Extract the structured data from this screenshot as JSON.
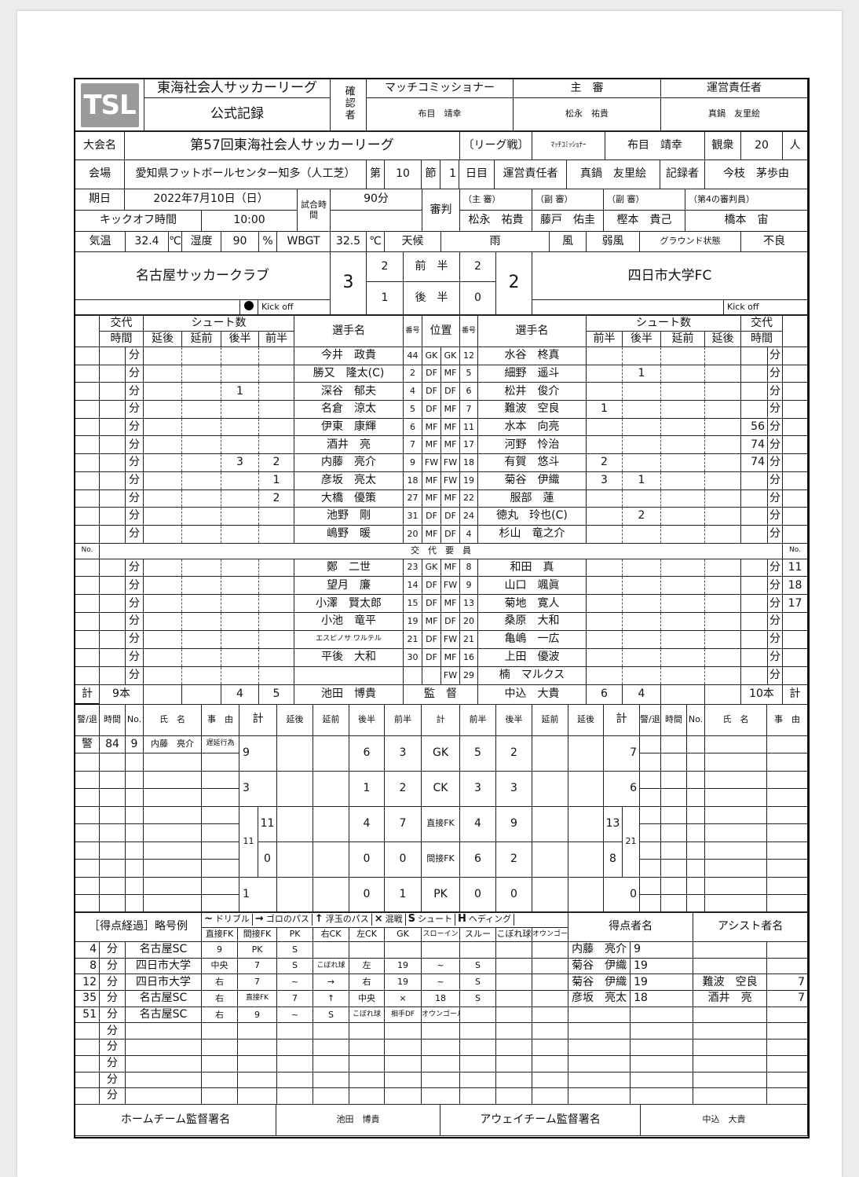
{
  "header": {
    "logo": "TSL",
    "league": "東海社会人サッカーリーグ",
    "record": "公式記録",
    "confirm_label": "確認者",
    "mc_label": "マッチコミッショナー",
    "mc_name": "布目　靖幸",
    "referee_label": "主　審",
    "referee_name": "松永　祐貴",
    "manager_label": "運営責任者",
    "manager_name": "真鍋　友里絵"
  },
  "info": {
    "competition_label": "大会名",
    "competition": "第57回東海社会人サッカーリーグ",
    "type": "〔リーグ戦〕",
    "mc_label": "ﾏｯﾁｺﾐｯｼｮﾅｰ",
    "mc_name": "布目　靖幸",
    "audience_label": "観衆",
    "audience": "20",
    "audience_unit": "人",
    "venue_label": "会場",
    "venue": "愛知県フットボールセンター知多（人工芝）",
    "round_prefix": "第",
    "round": "10",
    "round_unit": "節",
    "day": "1",
    "day_unit": "日目",
    "manager_label": "運営責任者",
    "manager_name": "真鍋　友里絵",
    "recorder_label": "記録者",
    "recorder": "今枝　茅歩由",
    "date_label": "期日",
    "date": "2022年7月10日（日）",
    "match_time_label": "試合時間",
    "match_time": "90分",
    "referees_label": "審判",
    "kickoff_label": "キックオフ時間",
    "kickoff": "10:00",
    "referee_roles": [
      "（主 審）",
      "（副 審）",
      "（副 審）",
      "（第4の審判員）"
    ],
    "referee_names": [
      "松永　祐貴",
      "藤戸　佑圭",
      "樫本　貴己",
      "橋本　宙"
    ],
    "weather": [
      {
        "t": "気温"
      },
      {
        "t": "32.4"
      },
      {
        "t": "℃"
      },
      {
        "t": "湿度"
      },
      {
        "t": "90"
      },
      {
        "t": "%"
      },
      {
        "t": "WBGT"
      },
      {
        "t": "32.5"
      },
      {
        "t": "℃"
      },
      {
        "t": "天候"
      },
      {
        "t": "雨"
      },
      {
        "t": "風"
      },
      {
        "t": "弱風"
      },
      {
        "t": "グラウンド状態"
      },
      {
        "t": "不良"
      }
    ]
  },
  "score": {
    "home_team": "名古屋サッカークラブ",
    "away_team": "四日市大学FC",
    "home_total": "3",
    "away_total": "2",
    "first_half_label": "前　半",
    "second_half_label": "後　半",
    "home_first": "2",
    "home_second": "1",
    "away_first": "2",
    "away_second": "0",
    "kickoff_text": "Kick off",
    "kickoff_side": "home"
  },
  "players": {
    "minute_unit": "分",
    "head": {
      "sub": "交代",
      "shots": "シュート数",
      "time": "時間",
      "name": "選手名",
      "num": "番号",
      "pos": "位置",
      "home_shot_cols": [
        "延後",
        "延前",
        "後半",
        "前半"
      ],
      "away_shot_cols": [
        "前半",
        "後半",
        "延前",
        "延後"
      ]
    },
    "starters": [
      {
        "h": [
          "",
          "",
          "",
          "",
          "",
          "今井　政貴",
          "44",
          "GK"
        ],
        "a": [
          "GK",
          "12",
          "水谷　柊真",
          "",
          "",
          "",
          "",
          "",
          ""
        ]
      },
      {
        "h": [
          "",
          "",
          "",
          "",
          "",
          "勝又　隆太(C)",
          "2",
          "DF"
        ],
        "a": [
          "MF",
          "5",
          "細野　遥斗",
          "",
          "1",
          "",
          "",
          "",
          ""
        ]
      },
      {
        "h": [
          "",
          "",
          "",
          "1",
          "",
          "深谷　郁夫",
          "4",
          "DF"
        ],
        "a": [
          "DF",
          "6",
          "松井　俊介",
          "",
          "",
          "",
          "",
          "",
          ""
        ]
      },
      {
        "h": [
          "",
          "",
          "",
          "",
          "",
          "名倉　涼太",
          "5",
          "DF"
        ],
        "a": [
          "MF",
          "7",
          "難波　空良",
          "1",
          "",
          "",
          "",
          "",
          ""
        ]
      },
      {
        "h": [
          "",
          "",
          "",
          "",
          "",
          "伊東　康輝",
          "6",
          "MF"
        ],
        "a": [
          "MF",
          "11",
          "水本　向亮",
          "",
          "",
          "",
          "",
          "56",
          ""
        ]
      },
      {
        "h": [
          "",
          "",
          "",
          "",
          "",
          "酒井　亮",
          "7",
          "MF"
        ],
        "a": [
          "MF",
          "17",
          "河野　怜治",
          "",
          "",
          "",
          "",
          "74",
          ""
        ]
      },
      {
        "h": [
          "",
          "",
          "",
          "3",
          "2",
          "内藤　亮介",
          "9",
          "FW"
        ],
        "a": [
          "FW",
          "18",
          "有賀　悠斗",
          "2",
          "",
          "",
          "",
          "74",
          ""
        ]
      },
      {
        "h": [
          "",
          "",
          "",
          "",
          "1",
          "彦坂　亮太",
          "18",
          "MF"
        ],
        "a": [
          "FW",
          "19",
          "菊谷　伊織",
          "3",
          "1",
          "",
          "",
          "",
          ""
        ]
      },
      {
        "h": [
          "",
          "",
          "",
          "",
          "2",
          "大橋　優策",
          "27",
          "MF"
        ],
        "a": [
          "MF",
          "22",
          "服部　蓮",
          "",
          "",
          "",
          "",
          "",
          ""
        ]
      },
      {
        "h": [
          "",
          "",
          "",
          "",
          "",
          "池野　剛",
          "31",
          "DF"
        ],
        "a": [
          "DF",
          "24",
          "徳丸　玲也(C)",
          "",
          "2",
          "",
          "",
          "",
          ""
        ]
      },
      {
        "h": [
          "",
          "",
          "",
          "",
          "",
          "嶋野　暖",
          "20",
          "MF"
        ],
        "a": [
          "DF",
          "4",
          "杉山　竜之介",
          "",
          "",
          "",
          "",
          "",
          ""
        ]
      }
    ],
    "subs_label": "交　代　要　員",
    "no_label": "No.",
    "subs": [
      {
        "h": [
          "",
          "",
          "",
          "",
          "",
          "鄭　二世",
          "23",
          "GK"
        ],
        "a": [
          "MF",
          "8",
          "和田　真",
          "",
          "",
          "",
          "",
          "",
          "11"
        ]
      },
      {
        "h": [
          "",
          "",
          "",
          "",
          "",
          "望月　廉",
          "14",
          "DF"
        ],
        "a": [
          "FW",
          "9",
          "山口　颯眞",
          "",
          "",
          "",
          "",
          "",
          "18"
        ]
      },
      {
        "h": [
          "",
          "",
          "",
          "",
          "",
          "小澤　賢太郎",
          "15",
          "DF"
        ],
        "a": [
          "MF",
          "13",
          "菊地　寛人",
          "",
          "",
          "",
          "",
          "",
          "17"
        ]
      },
      {
        "h": [
          "",
          "",
          "",
          "",
          "",
          "小池　竜平",
          "19",
          "MF"
        ],
        "a": [
          "DF",
          "20",
          "桑原　大和",
          "",
          "",
          "",
          "",
          "",
          ""
        ]
      },
      {
        "h": [
          "",
          "",
          "",
          "",
          "",
          "エスピノサ ワルテル",
          "21",
          "DF"
        ],
        "a": [
          "FW",
          "21",
          "亀嶋　一広",
          "",
          "",
          "",
          "",
          "",
          ""
        ]
      },
      {
        "h": [
          "",
          "",
          "",
          "",
          "",
          "平後　大和",
          "30",
          "DF"
        ],
        "a": [
          "MF",
          "16",
          "上田　優波",
          "",
          "",
          "",
          "",
          "",
          ""
        ]
      },
      {
        "h": [
          "",
          "",
          "",
          "",
          "",
          "",
          "",
          ""
        ],
        "a": [
          "FW",
          "29",
          "楠　マルクス",
          "",
          "",
          "",
          "",
          "",
          ""
        ]
      }
    ],
    "totals": {
      "label": "計",
      "home_total": "9本",
      "home_second": "4",
      "home_first": "5",
      "home_coach": "池田　博貴",
      "coach_label": "監　督",
      "away_coach": "中込　大貴",
      "away_first": "6",
      "away_second": "4",
      "away_total": "10本"
    }
  },
  "stats": {
    "card_head": [
      "警/退",
      "時間",
      "No.",
      "氏　名",
      "事　由"
    ],
    "head": [
      "計",
      "延後",
      "延前",
      "後半",
      "前半",
      "計",
      "前半",
      "後半",
      "延前",
      "延後",
      "計"
    ],
    "home_cards": [
      {
        "type": "警",
        "time": "84",
        "no": "9",
        "name": "内藤　亮介",
        "reason": "遅延行為"
      }
    ],
    "away_cards": [],
    "categories": [
      "GK",
      "CK",
      "直接FK",
      "間接FK",
      "PK"
    ],
    "home_total": [
      "9",
      "3",
      "11",
      "0",
      "1"
    ],
    "home_second": [
      "6",
      "1",
      "4",
      "0",
      "0"
    ],
    "home_first": [
      "3",
      "2",
      "7",
      "0",
      "1"
    ],
    "away_first": [
      "5",
      "3",
      "4",
      "6",
      "0"
    ],
    "away_second": [
      "2",
      "3",
      "9",
      "2",
      "0"
    ],
    "away_total": [
      "7",
      "6",
      "13",
      "8",
      "0"
    ],
    "home_fk_total": "11",
    "away_fk_total": "21"
  },
  "goals": {
    "title": "［得点経過］略号例",
    "legend": [
      {
        "s": "~",
        "t": "ドリブル"
      },
      {
        "s": "→",
        "t": "ゴロのパス"
      },
      {
        "s": "↑",
        "t": "浮玉のパス"
      },
      {
        "s": "×",
        "t": "混戦"
      },
      {
        "s": "S",
        "t": "シュート"
      },
      {
        "s": "H",
        "t": "ヘディング"
      }
    ],
    "cols": [
      "直接FK",
      "間接FK",
      "PK",
      "右CK",
      "左CK",
      "GK",
      "スローイン",
      "スルー",
      "こぼれ球",
      "オウンゴール"
    ],
    "scorer_label": "得点者名",
    "assist_label": "アシスト者名",
    "minute_unit": "分",
    "rows": [
      {
        "min": "4",
        "team": "名古屋SC",
        "seq": [
          "9",
          "PK",
          "S",
          "",
          "",
          "",
          "",
          "",
          "",
          ""
        ],
        "scorer": "内藤　亮介",
        "scorer_no": "9",
        "assist": "",
        "assist_no": ""
      },
      {
        "min": "8",
        "team": "四日市大学",
        "seq": [
          "中央",
          "7",
          "S",
          "こぼれ球",
          "左",
          "19",
          "~",
          "S",
          "",
          ""
        ],
        "scorer": "菊谷　伊織",
        "scorer_no": "19",
        "assist": "",
        "assist_no": ""
      },
      {
        "min": "12",
        "team": "四日市大学",
        "seq": [
          "右",
          "7",
          "~",
          "→",
          "右",
          "19",
          "~",
          "S",
          "",
          ""
        ],
        "scorer": "菊谷　伊織",
        "scorer_no": "19",
        "assist": "難波　空良",
        "assist_no": "7"
      },
      {
        "min": "35",
        "team": "名古屋SC",
        "seq": [
          "右",
          "直接FK",
          "7",
          "↑",
          "中央",
          "×",
          "18",
          "S",
          "",
          ""
        ],
        "scorer": "彦坂　亮太",
        "scorer_no": "18",
        "assist": "酒井　亮",
        "assist_no": "7"
      },
      {
        "min": "51",
        "team": "名古屋SC",
        "seq": [
          "右",
          "9",
          "~",
          "S",
          "こぼれ球",
          "相手DF",
          "オウンゴール",
          "",
          "",
          ""
        ],
        "scorer": "",
        "scorer_no": "",
        "assist": "",
        "assist_no": ""
      },
      {
        "min": "",
        "team": "",
        "seq": [],
        "scorer": "",
        "scorer_no": "",
        "assist": "",
        "assist_no": ""
      },
      {
        "min": "",
        "team": "",
        "seq": [],
        "scorer": "",
        "scorer_no": "",
        "assist": "",
        "assist_no": ""
      },
      {
        "min": "",
        "team": "",
        "seq": [],
        "scorer": "",
        "scorer_no": "",
        "assist": "",
        "assist_no": ""
      },
      {
        "min": "",
        "team": "",
        "seq": [],
        "scorer": "",
        "scorer_no": "",
        "assist": "",
        "assist_no": ""
      },
      {
        "min": "",
        "team": "",
        "seq": [],
        "scorer": "",
        "scorer_no": "",
        "assist": "",
        "assist_no": ""
      }
    ]
  },
  "signature": {
    "home_label": "ホームチーム監督署名",
    "home_name": "池田　博貴",
    "away_label": "アウェイチーム監督署名",
    "away_name": "中込　大貴"
  }
}
